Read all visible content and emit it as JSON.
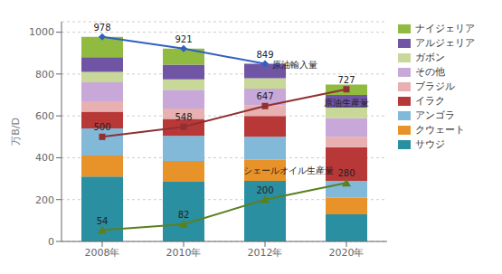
{
  "chart_data": {
    "type": "bar",
    "stacked": true,
    "categories": [
      "2008年",
      "2010年",
      "2012年",
      "2020年"
    ],
    "ylabel": "万B/D",
    "ylim": [
      0,
      1050
    ],
    "yticks": [
      0,
      200,
      400,
      600,
      800,
      1000
    ],
    "grid": true,
    "legend": "right",
    "series": [
      {
        "name": "サウジ",
        "color": "#2a8fa0",
        "values": [
          310,
          285,
          290,
          130
        ]
      },
      {
        "name": "クウェート",
        "color": "#e8932a",
        "values": [
          100,
          100,
          100,
          80
        ]
      },
      {
        "name": "アンゴラ",
        "color": "#82b8d8",
        "values": [
          130,
          120,
          110,
          80
        ]
      },
      {
        "name": "イラク",
        "color": "#b83838",
        "values": [
          80,
          80,
          100,
          160
        ]
      },
      {
        "name": "ブラジル",
        "color": "#e8b0b0",
        "values": [
          50,
          50,
          50,
          50
        ]
      },
      {
        "name": "その他",
        "color": "#c8a8d8",
        "values": [
          90,
          90,
          80,
          90
        ]
      },
      {
        "name": "ガボン",
        "color": "#c8d898",
        "values": [
          50,
          50,
          50,
          50
        ]
      },
      {
        "name": "アルジェリア",
        "color": "#7055a5",
        "values": [
          70,
          70,
          69,
          60
        ]
      },
      {
        "name": "ナイジェリア",
        "color": "#90ba40",
        "values": [
          98,
          76,
          0,
          50
        ]
      },
      {
        "name": "原油輸入量",
        "type": "line",
        "color": "#3060c0",
        "marker": "diamond",
        "data_labels": true,
        "values": [
          978,
          921,
          849,
          null
        ]
      },
      {
        "name": "原油生産量",
        "type": "line",
        "color": "#903030",
        "marker": "square",
        "data_labels": true,
        "values": [
          500,
          548,
          647,
          727
        ]
      },
      {
        "name": "シェールオイル生産量",
        "type": "line",
        "color": "#5a8020",
        "marker": "triangle",
        "data_labels": true,
        "values": [
          54,
          82,
          200,
          280
        ]
      }
    ]
  }
}
